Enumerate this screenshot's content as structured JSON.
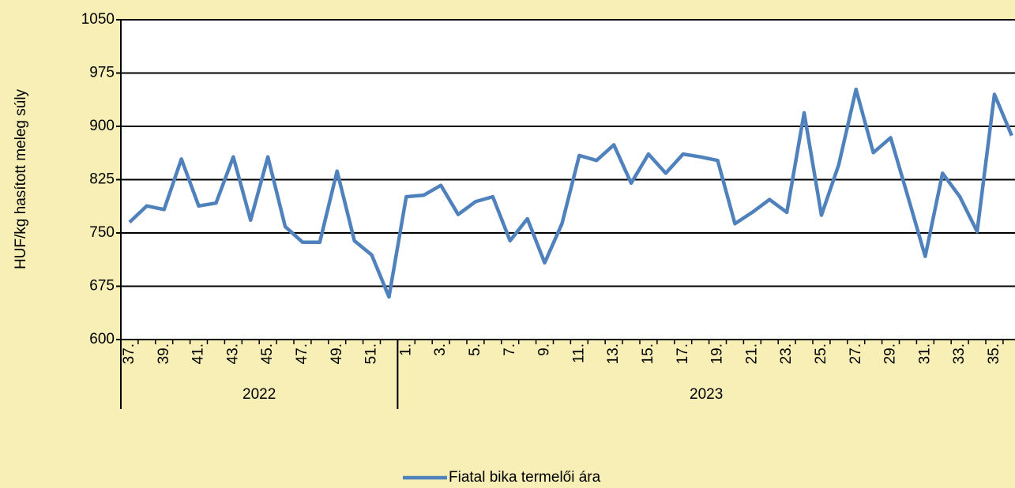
{
  "chart_data": {
    "type": "line",
    "y_label": "HUF/kg hasított meleg súly",
    "categories": [
      "37.",
      null,
      "39.",
      null,
      "41.",
      null,
      "43.",
      null,
      "45.",
      null,
      "47.",
      null,
      "49.",
      null,
      "51.",
      null,
      "1.",
      null,
      "3.",
      null,
      "5.",
      null,
      "7.",
      null,
      "9.",
      null,
      "11.",
      null,
      "13.",
      null,
      "15.",
      null,
      "17.",
      null,
      "19.",
      null,
      "21.",
      null,
      "23.",
      null,
      "25.",
      null,
      "27.",
      null,
      "29.",
      null,
      "31.",
      null,
      "33.",
      null,
      "35.",
      null
    ],
    "groups": [
      {
        "name": "2022",
        "size": 16
      },
      {
        "name": "2023",
        "size": 36
      }
    ],
    "series": [
      {
        "name": "Fiatal bika termelői ára",
        "color": "#4f81bd",
        "values": [
          765,
          788,
          783,
          854,
          788,
          792,
          857,
          768,
          857,
          759,
          737,
          737,
          837,
          739,
          719,
          660,
          801,
          803,
          817,
          776,
          794,
          801,
          739,
          770,
          708,
          763,
          859,
          852,
          874,
          820,
          861,
          834,
          861,
          857,
          852,
          763,
          779,
          797,
          779,
          919,
          775,
          846,
          952,
          863,
          884,
          801,
          717,
          834,
          801,
          752,
          945,
          887
        ]
      }
    ],
    "ylim": [
      600,
      1050
    ],
    "yticks": [
      600,
      675,
      750,
      825,
      900,
      975,
      1050
    ],
    "grid": true,
    "legend": "bottom"
  }
}
